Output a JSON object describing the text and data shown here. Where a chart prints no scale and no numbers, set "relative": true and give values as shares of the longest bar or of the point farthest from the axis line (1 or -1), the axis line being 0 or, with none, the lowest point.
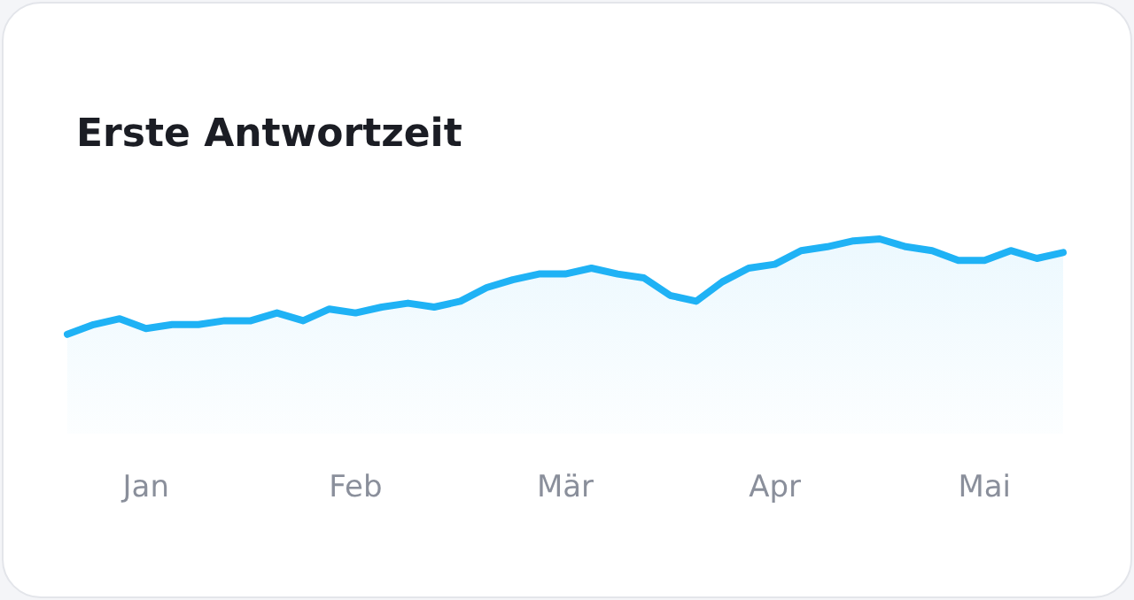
{
  "chart_data": {
    "type": "area",
    "title": "Erste Antwortzeit",
    "relative": true,
    "color": "#1fb2f5",
    "categories": [
      null,
      null,
      null,
      "Jan",
      null,
      null,
      null,
      null,
      null,
      null,
      null,
      "Feb",
      null,
      null,
      null,
      null,
      null,
      null,
      null,
      "Mär",
      null,
      null,
      null,
      null,
      null,
      null,
      null,
      "Apr",
      null,
      null,
      null,
      null,
      null,
      null,
      null,
      "Mai",
      null,
      null,
      null
    ],
    "values": [
      0.51,
      0.56,
      0.59,
      0.54,
      0.56,
      0.56,
      0.58,
      0.58,
      0.62,
      0.58,
      0.64,
      0.62,
      0.65,
      0.67,
      0.65,
      0.68,
      0.75,
      0.79,
      0.82,
      0.82,
      0.85,
      0.82,
      0.8,
      0.71,
      0.68,
      0.78,
      0.85,
      0.87,
      0.94,
      0.96,
      0.99,
      1,
      0.96,
      0.94,
      0.89,
      0.89,
      0.94,
      0.9,
      0.93
    ],
    "tick_labels": "x",
    "grid": false,
    "marker": "none"
  }
}
